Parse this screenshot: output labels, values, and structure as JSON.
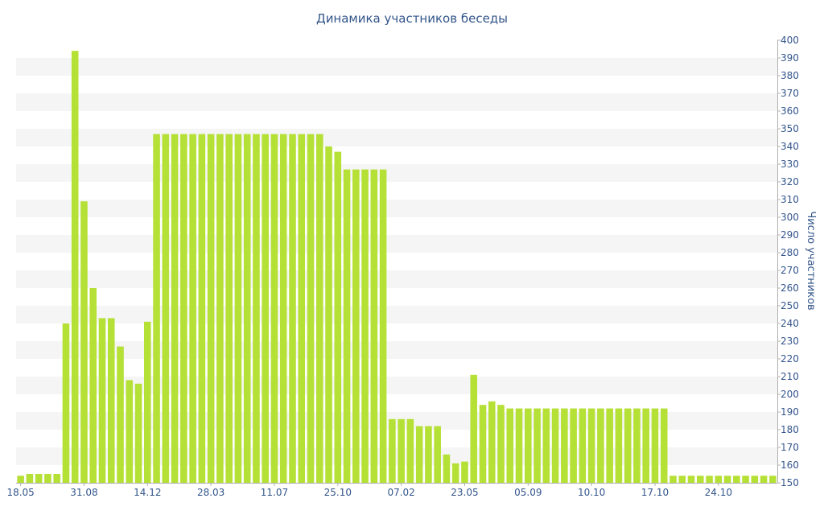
{
  "chart_data": {
    "type": "bar",
    "title": "Динамика участников беседы",
    "xlabel": "",
    "ylabel": "Число участников",
    "y_axis_side": "right",
    "ylim": [
      150,
      400
    ],
    "y_ticks": [
      150,
      160,
      170,
      180,
      190,
      200,
      210,
      220,
      230,
      240,
      250,
      260,
      270,
      280,
      290,
      300,
      310,
      320,
      330,
      340,
      350,
      360,
      370,
      380,
      390,
      400
    ],
    "x_tick_labels": [
      {
        "index": 0,
        "label": "18.05"
      },
      {
        "index": 7,
        "label": "31.08"
      },
      {
        "index": 14,
        "label": "14.12"
      },
      {
        "index": 21,
        "label": "28.03"
      },
      {
        "index": 28,
        "label": "11.07"
      },
      {
        "index": 35,
        "label": "25.10"
      },
      {
        "index": 42,
        "label": "07.02"
      },
      {
        "index": 49,
        "label": "23.05"
      },
      {
        "index": 56,
        "label": "05.09"
      },
      {
        "index": 63,
        "label": "10.10"
      },
      {
        "index": 70,
        "label": "17.10"
      },
      {
        "index": 77,
        "label": "24.10"
      }
    ],
    "values": [
      154,
      155,
      155,
      155,
      155,
      240,
      394,
      309,
      260,
      243,
      243,
      227,
      208,
      206,
      241,
      347,
      347,
      347,
      347,
      347,
      347,
      347,
      347,
      347,
      347,
      347,
      347,
      347,
      347,
      347,
      347,
      347,
      347,
      347,
      340,
      337,
      327,
      327,
      327,
      327,
      327,
      186,
      186,
      186,
      182,
      182,
      182,
      166,
      161,
      162,
      211,
      194,
      196,
      194,
      192,
      192,
      192,
      192,
      192,
      192,
      192,
      192,
      192,
      192,
      192,
      192,
      192,
      192,
      192,
      192,
      192,
      192,
      154,
      154,
      154,
      154,
      154,
      154,
      154,
      154,
      154,
      154,
      154,
      154
    ],
    "grid": true,
    "colors": {
      "bar": "#b5e035",
      "band": "#f5f5f5",
      "text": "#33558b",
      "axis": "#b0b0b0"
    }
  }
}
